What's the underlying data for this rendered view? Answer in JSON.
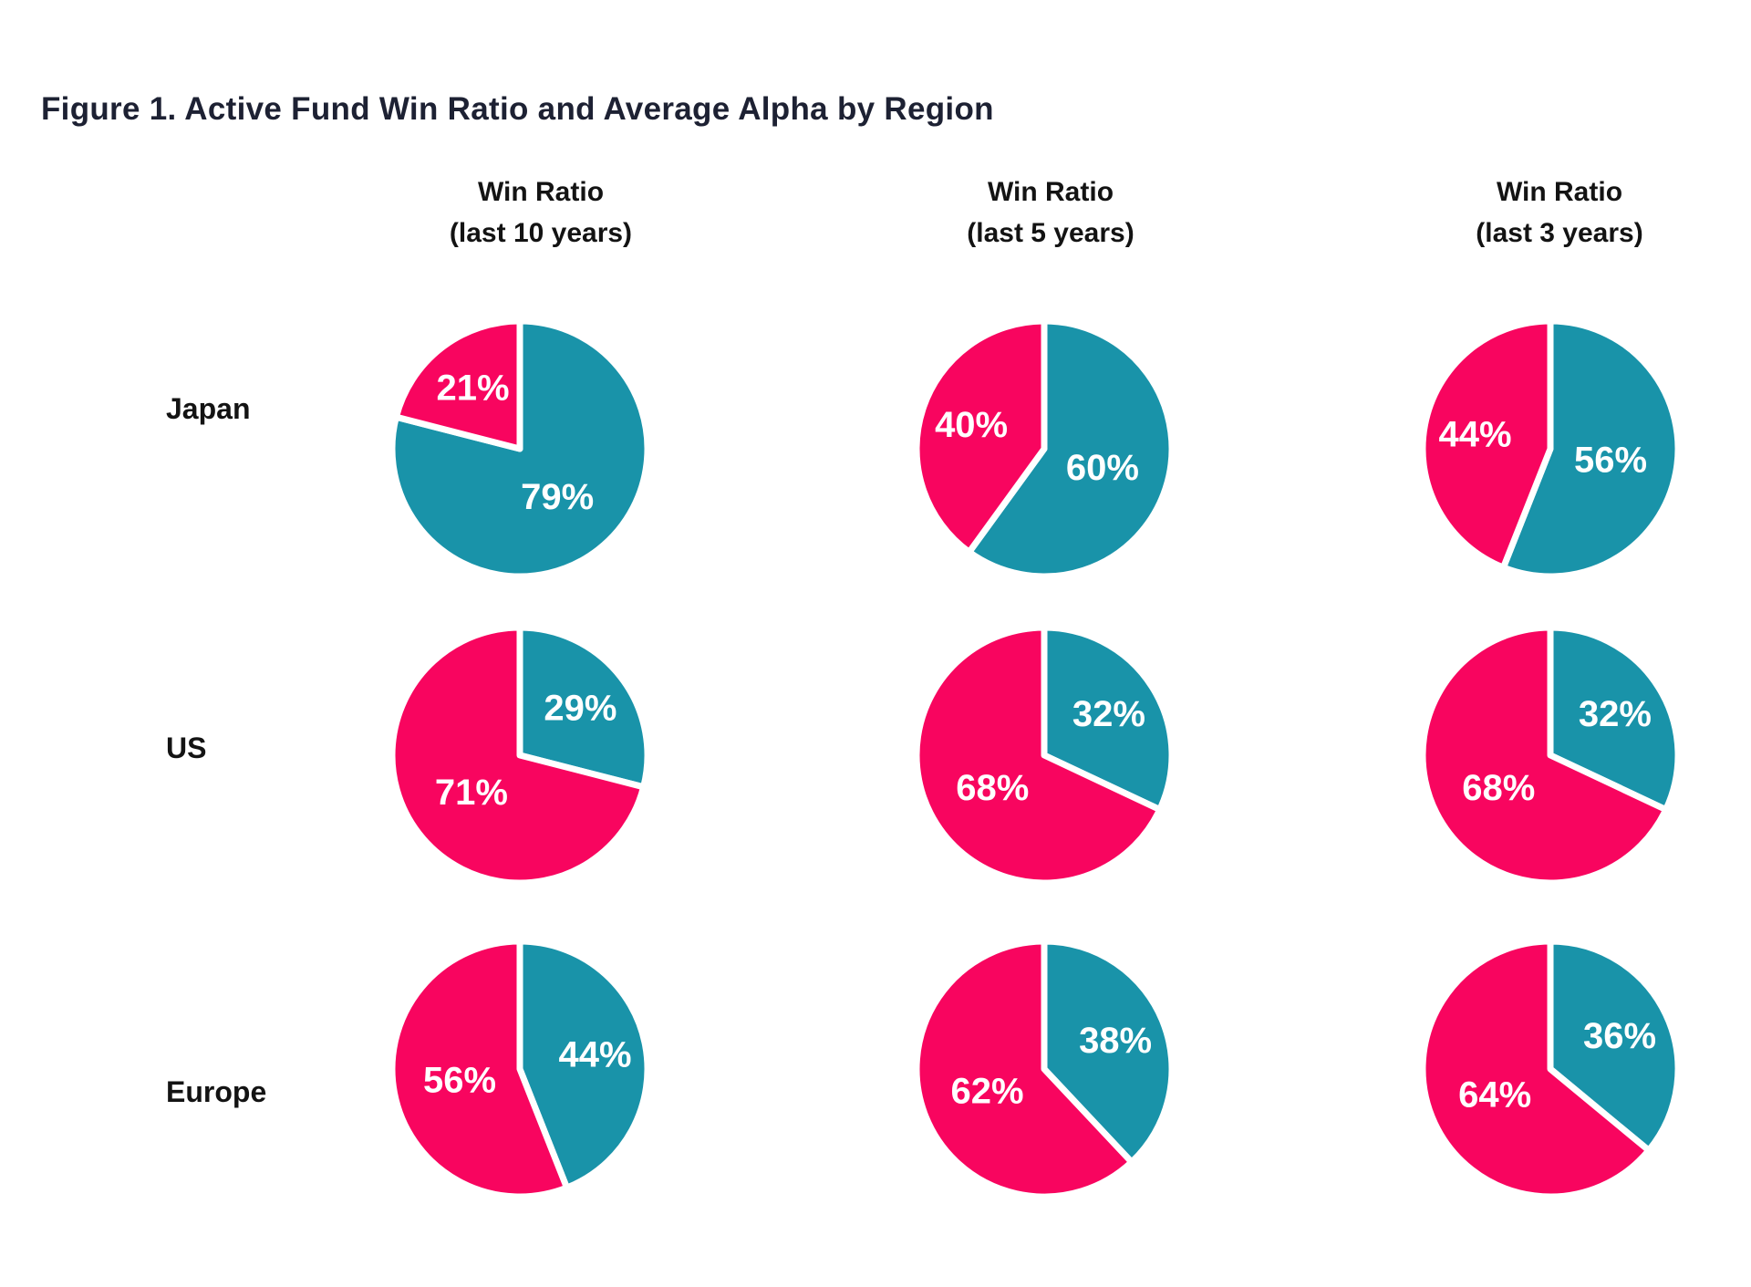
{
  "title": "Figure 1. Active Fund Win Ratio and Average Alpha by Region",
  "colors": {
    "pink": "#F8055F",
    "teal": "#1993A9",
    "title_text": "#1D2133",
    "header_text": "#131313",
    "pie_label_text": "#FFFFFF",
    "background": "#FFFFFF"
  },
  "chart_data": {
    "type": "pie",
    "unit": "%",
    "layout": "3x3 grid of pie charts; rows are regions, columns are time periods; no legend; labels printed in white inside slices",
    "slice_order": "teal slice starts at 12 o'clock sweeping clockwise, pink slice fills the remainder",
    "columns": [
      {
        "label": "Win Ratio",
        "sublabel": "(last 10 years)"
      },
      {
        "label": "Win Ratio",
        "sublabel": "(last 5 years)"
      },
      {
        "label": "Win Ratio",
        "sublabel": "(last 3 years)"
      }
    ],
    "rows": [
      "Japan",
      "US",
      "Europe"
    ],
    "pies": [
      {
        "region": "Japan",
        "period": "last 10 years",
        "teal_pct": 79,
        "pink_pct": 21
      },
      {
        "region": "Japan",
        "period": "last 5 years",
        "teal_pct": 60,
        "pink_pct": 40
      },
      {
        "region": "Japan",
        "period": "last 3 years",
        "teal_pct": 56,
        "pink_pct": 44
      },
      {
        "region": "US",
        "period": "last 10 years",
        "teal_pct": 29,
        "pink_pct": 71
      },
      {
        "region": "US",
        "period": "last 5 years",
        "teal_pct": 32,
        "pink_pct": 68
      },
      {
        "region": "US",
        "period": "last 3 years",
        "teal_pct": 32,
        "pink_pct": 68
      },
      {
        "region": "Europe",
        "period": "last 10 years",
        "teal_pct": 44,
        "pink_pct": 56
      },
      {
        "region": "Europe",
        "period": "last 5 years",
        "teal_pct": 38,
        "pink_pct": 62
      },
      {
        "region": "Europe",
        "period": "last 3 years",
        "teal_pct": 36,
        "pink_pct": 64
      }
    ]
  }
}
